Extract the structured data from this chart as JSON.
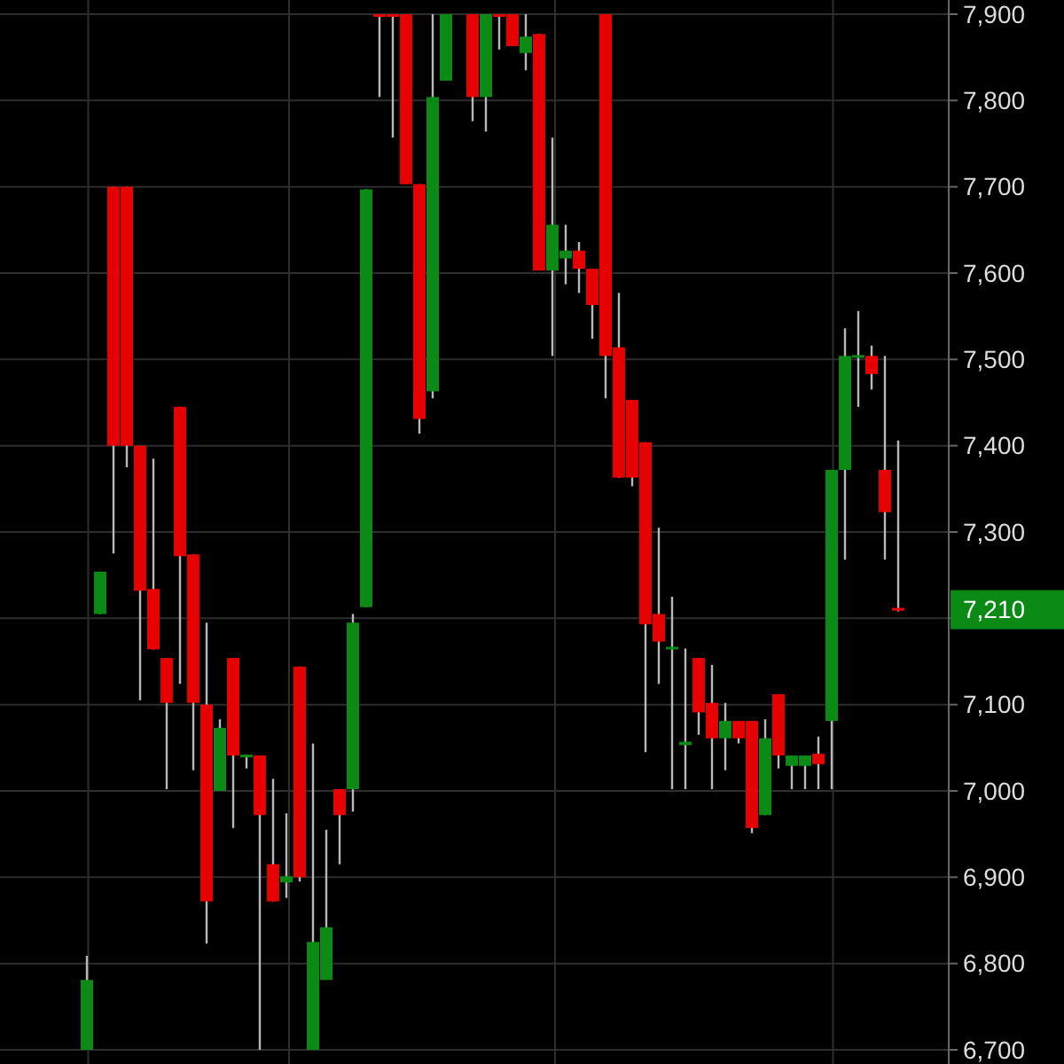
{
  "chart_data": {
    "type": "candlestick",
    "categories": [
      null,
      null,
      null,
      null,
      null,
      null,
      null,
      null,
      null,
      null,
      null,
      null,
      null,
      null,
      null,
      null,
      null,
      null,
      null,
      null,
      null,
      null,
      null,
      null,
      null,
      null,
      null,
      null,
      null,
      null,
      null,
      null,
      null,
      null,
      null,
      null,
      null,
      null,
      null,
      null,
      null,
      null,
      null,
      null,
      null,
      null,
      null,
      null,
      null,
      null,
      null,
      null,
      null,
      null,
      null,
      null,
      null,
      null,
      null,
      null,
      null,
      null
    ],
    "ohlc": [
      [
        6700,
        6809,
        6700,
        6781
      ],
      [
        7205,
        7254,
        7205,
        7254
      ],
      [
        7700,
        7700,
        7275,
        7400
      ],
      [
        7700,
        7700,
        7375,
        7400
      ],
      [
        7400,
        7400,
        7105,
        7232
      ],
      [
        7234,
        7385,
        7164,
        7164
      ],
      [
        7154,
        7154,
        7002,
        7102
      ],
      [
        7445,
        7445,
        7124,
        7272
      ],
      [
        7274,
        7274,
        7024,
        7102
      ],
      [
        7100,
        7195,
        6823,
        6872
      ],
      [
        7000,
        7083,
        7000,
        7073
      ],
      [
        7154,
        7154,
        6957,
        7041
      ],
      [
        7040,
        7042,
        7026,
        7042
      ],
      [
        7041,
        7041,
        6700,
        6972
      ],
      [
        6915,
        7014,
        6872,
        6872
      ],
      [
        6894,
        6974,
        6876,
        6901
      ],
      [
        7144,
        7144,
        6895,
        6900
      ],
      [
        6700,
        7055,
        6700,
        6825
      ],
      [
        6781,
        6955,
        6781,
        6842
      ],
      [
        7002,
        7002,
        6915,
        6972
      ],
      [
        7002,
        7205,
        6976,
        7195
      ],
      [
        7213,
        7697,
        7213,
        7697
      ],
      [
        7900,
        7900,
        7804,
        7900
      ],
      [
        7900,
        7900,
        7757,
        7900
      ],
      [
        7900,
        7900,
        7703,
        7703
      ],
      [
        7703,
        7703,
        7414,
        7431
      ],
      [
        7463,
        7900,
        7455,
        7804
      ],
      [
        7823,
        7900,
        7823,
        7900
      ],
      null,
      [
        7900,
        7900,
        7776,
        7804
      ],
      [
        7804,
        7900,
        7764,
        7900
      ],
      [
        7900,
        7900,
        7859,
        7900
      ],
      [
        7900,
        7900,
        7863,
        7863
      ],
      [
        7855,
        7900,
        7835,
        7874
      ],
      [
        7877,
        7877,
        7603,
        7603
      ],
      [
        7603,
        7757,
        7504,
        7656
      ],
      [
        7617,
        7656,
        7587,
        7626
      ],
      [
        7626,
        7636,
        7577,
        7605
      ],
      [
        7605,
        7605,
        7524,
        7563
      ],
      [
        7900,
        7900,
        7455,
        7504
      ],
      [
        7514,
        7577,
        7363,
        7363
      ],
      [
        7453,
        7453,
        7353,
        7363
      ],
      [
        7404,
        7404,
        7045,
        7193
      ],
      [
        7205,
        7305,
        7124,
        7173
      ],
      [
        7164,
        7225,
        7002,
        7167
      ],
      [
        7053,
        7165,
        7002,
        7057
      ],
      [
        7154,
        7154,
        7065,
        7091
      ],
      [
        7102,
        7146,
        7002,
        7061
      ],
      [
        7061,
        7102,
        7024,
        7081
      ],
      [
        7081,
        7081,
        7055,
        7061
      ],
      [
        7081,
        7081,
        6951,
        6957
      ],
      [
        6972,
        7083,
        6972,
        7061
      ],
      [
        7112,
        7112,
        7026,
        7041
      ],
      [
        7029,
        7041,
        7002,
        7041
      ],
      [
        7029,
        7041,
        7002,
        7041
      ],
      [
        7043,
        7063,
        7002,
        7031
      ],
      [
        7081,
        7372,
        7002,
        7372
      ],
      [
        7372,
        7536,
        7268,
        7504
      ],
      [
        7503,
        7556,
        7445,
        7505
      ],
      [
        7504,
        7516,
        7465,
        7483
      ],
      [
        7372,
        7504,
        7268,
        7323
      ],
      [
        7212,
        7406,
        7208,
        7210
      ]
    ],
    "colors": [
      "#0b8a16",
      "#0b8a16",
      "#e60000",
      "#e60000",
      "#e60000",
      "#e60000",
      "#e60000",
      "#e60000",
      "#e60000",
      "#e60000",
      "#0b8a16",
      "#e60000",
      "#0b8a16",
      "#e60000",
      "#e60000",
      "#0b8a16",
      "#e60000",
      "#0b8a16",
      "#0b8a16",
      "#e60000",
      "#0b8a16",
      "#0b8a16",
      "#e60000",
      "#e60000",
      "#e60000",
      "#e60000",
      "#0b8a16",
      "#0b8a16",
      null,
      "#e60000",
      "#0b8a16",
      "#e60000",
      "#e60000",
      "#0b8a16",
      "#e60000",
      "#0b8a16",
      "#0b8a16",
      "#e60000",
      "#e60000",
      "#e60000",
      "#e60000",
      "#e60000",
      "#e60000",
      "#e60000",
      "#0b8a16",
      "#0b8a16",
      "#e60000",
      "#e60000",
      "#0b8a16",
      "#e60000",
      "#e60000",
      "#0b8a16",
      "#e60000",
      "#0b8a16",
      "#0b8a16",
      "#e60000",
      "#0b8a16",
      "#0b8a16",
      "#0b8a16",
      "#e60000",
      "#e60000",
      "#e60000"
    ],
    "ylim": [
      6700,
      7900
    ],
    "yticks": [
      {
        "value": 6700,
        "label": "6,700"
      },
      {
        "value": 6800,
        "label": "6,800"
      },
      {
        "value": 6900,
        "label": "6,900"
      },
      {
        "value": 7000,
        "label": "7,000"
      },
      {
        "value": 7100,
        "label": "7,100"
      },
      {
        "value": 7200,
        "label": null
      },
      {
        "value": 7300,
        "label": "7,300"
      },
      {
        "value": 7400,
        "label": "7,400"
      },
      {
        "value": 7500,
        "label": "7,500"
      },
      {
        "value": 7600,
        "label": "7,600"
      },
      {
        "value": 7700,
        "label": "7,700"
      },
      {
        "value": 7800,
        "label": "7,800"
      },
      {
        "value": 7900,
        "label": "7,900"
      }
    ],
    "grid": true,
    "annotations": [
      "7,210"
    ]
  }
}
